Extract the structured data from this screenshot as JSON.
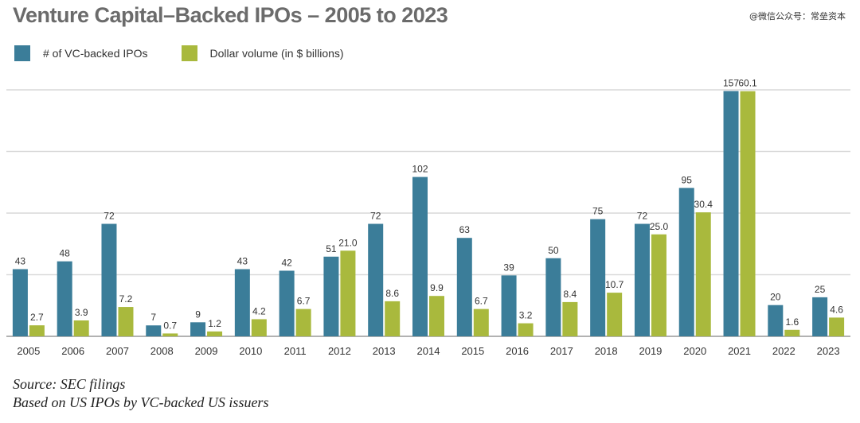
{
  "title": "Venture Capital–Backed IPOs – 2005 to 2023",
  "watermark": "@微信公众号：常垒资本",
  "footer": {
    "line1": "Source: SEC filings",
    "line2": "Based on US IPOs by VC-backed US issuers"
  },
  "colors": {
    "ipos": "#3b7d99",
    "dollar": "#a9b93d",
    "grid": "#d9d9d9",
    "axis": "#999999"
  },
  "chart_data": {
    "type": "bar",
    "title": "Venture Capital–Backed IPOs – 2005 to 2023",
    "categories": [
      "2005",
      "2006",
      "2007",
      "2008",
      "2009",
      "2010",
      "2011",
      "2012",
      "2013",
      "2014",
      "2015",
      "2016",
      "2017",
      "2018",
      "2019",
      "2020",
      "2021",
      "2022",
      "2023"
    ],
    "series": [
      {
        "name": "# of VC-backed IPOs",
        "values": [
          43,
          48,
          72,
          7,
          9,
          43,
          42,
          51,
          72,
          102,
          63,
          39,
          50,
          75,
          72,
          95,
          157,
          20,
          25
        ]
      },
      {
        "name": "Dollar volume (in $ billions)",
        "values": [
          2.7,
          3.9,
          7.2,
          0.7,
          1.2,
          4.2,
          6.7,
          21.0,
          8.6,
          9.9,
          6.7,
          3.2,
          8.4,
          10.7,
          25.0,
          30.4,
          60.1,
          1.6,
          4.6
        ]
      }
    ],
    "labels": [
      [
        "43",
        "48",
        "72",
        "7",
        "9",
        "43",
        "42",
        "51",
        "72",
        "102",
        "63",
        "39",
        "50",
        "75",
        "72",
        "95",
        "157",
        "20",
        "25"
      ],
      [
        "2.7",
        "3.9",
        "7.2",
        "0.7",
        "1.2",
        "4.2",
        "6.7",
        "21.0",
        "8.6",
        "9.9",
        "6.7",
        "3.2",
        "8.4",
        "10.7",
        "25.0",
        "30.4",
        "60.1",
        "1.6",
        "4.6"
      ]
    ],
    "grid": true,
    "legend_position": "top-left"
  }
}
